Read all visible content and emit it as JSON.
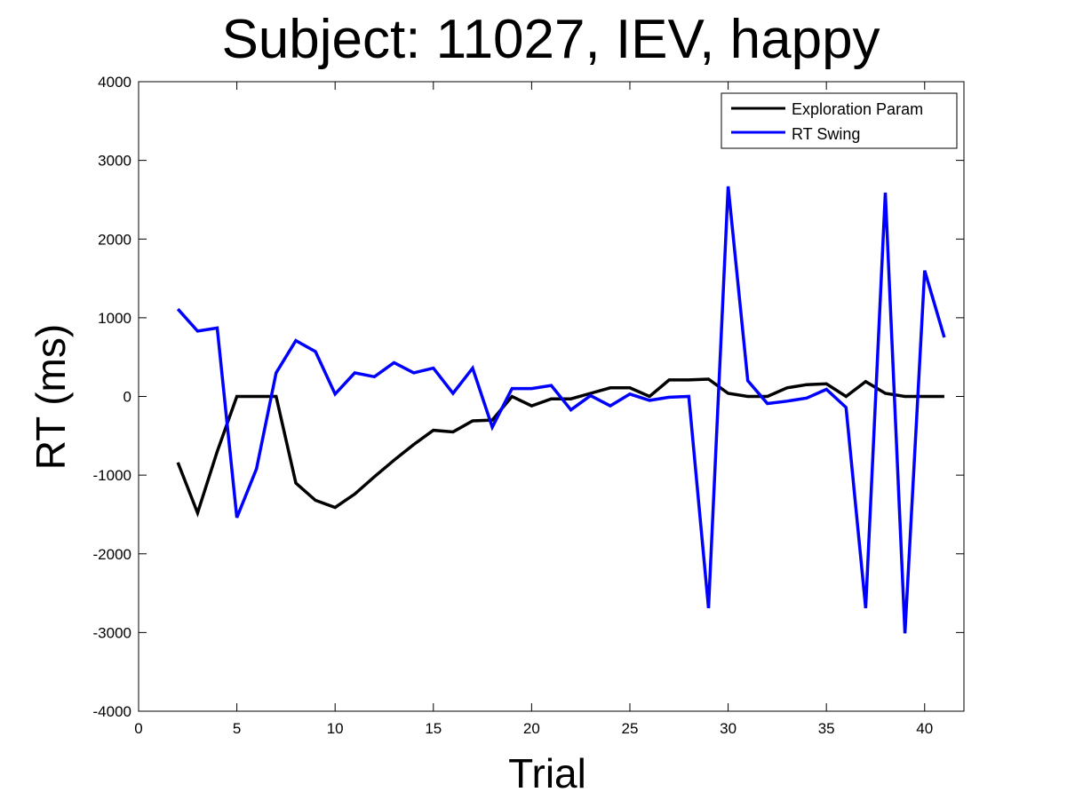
{
  "chart_data": {
    "type": "line",
    "title": "Subject: 11027, IEV, happy",
    "xlabel": "Trial",
    "ylabel": "RT (ms)",
    "xlim": [
      0,
      42
    ],
    "ylim": [
      -4000,
      4000
    ],
    "xticks": [
      0,
      5,
      10,
      15,
      20,
      25,
      30,
      35,
      40
    ],
    "yticks": [
      -4000,
      -3000,
      -2000,
      -1000,
      0,
      1000,
      2000,
      3000,
      4000
    ],
    "grid": false,
    "legend_position": "top-right",
    "x": [
      2,
      3,
      4,
      5,
      6,
      7,
      8,
      9,
      10,
      11,
      12,
      13,
      14,
      15,
      16,
      17,
      18,
      19,
      20,
      21,
      22,
      23,
      24,
      25,
      26,
      27,
      28,
      29,
      30,
      31,
      32,
      33,
      34,
      35,
      36,
      37,
      38,
      39,
      40,
      41
    ],
    "series": [
      {
        "name": "Exploration Param",
        "color": "#000000",
        "values": [
          -840,
          -1480,
          -700,
          0,
          0,
          0,
          -1100,
          -1320,
          -1410,
          -1240,
          -1020,
          -810,
          -610,
          -430,
          -450,
          -310,
          -300,
          0,
          -120,
          -30,
          -30,
          40,
          110,
          110,
          0,
          210,
          210,
          220,
          40,
          0,
          0,
          110,
          150,
          160,
          0,
          190,
          40,
          0,
          0,
          0
        ]
      },
      {
        "name": "RT Swing",
        "color": "#0000ff",
        "values": [
          1110,
          830,
          870,
          -1540,
          -920,
          300,
          710,
          570,
          30,
          300,
          250,
          430,
          300,
          360,
          40,
          360,
          -390,
          100,
          100,
          140,
          -170,
          10,
          -120,
          30,
          -50,
          -10,
          0,
          -2690,
          2670,
          200,
          -90,
          -60,
          -20,
          90,
          -140,
          -2690,
          2590,
          -3010,
          1600,
          750
        ]
      }
    ]
  }
}
